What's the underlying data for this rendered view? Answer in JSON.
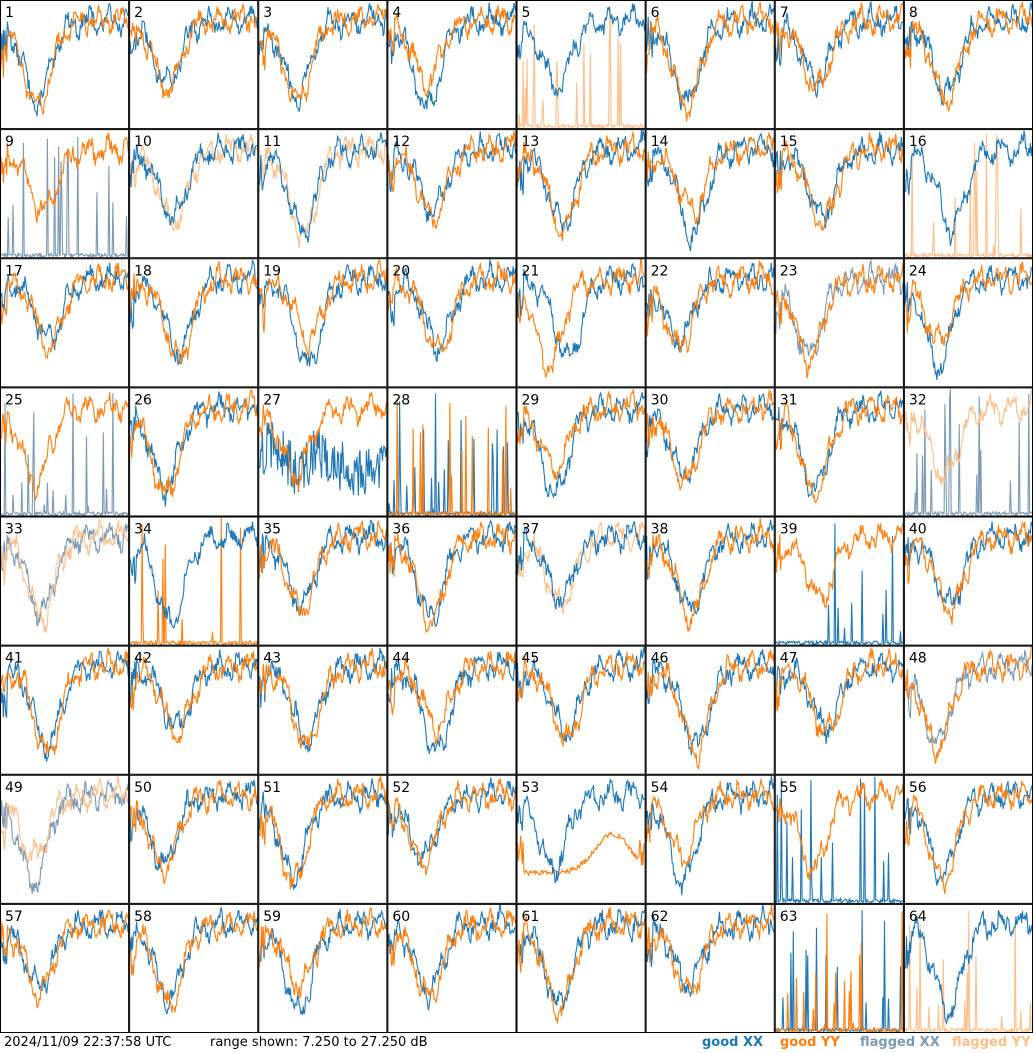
{
  "chart_data": {
    "type": "line",
    "panel_labels": [
      "1",
      "2",
      "3",
      "4",
      "5",
      "6",
      "7",
      "8",
      "9",
      "10",
      "11",
      "12",
      "13",
      "14",
      "15",
      "16",
      "17",
      "18",
      "19",
      "20",
      "21",
      "22",
      "23",
      "24",
      "25",
      "26",
      "27",
      "28",
      "29",
      "30",
      "31",
      "32",
      "33",
      "34",
      "35",
      "36",
      "37",
      "38",
      "39",
      "40",
      "41",
      "42",
      "43",
      "44",
      "45",
      "46",
      "47",
      "48",
      "49",
      "50",
      "51",
      "52",
      "53",
      "54",
      "55",
      "56",
      "57",
      "58",
      "59",
      "60",
      "61",
      "62",
      "63",
      "64"
    ],
    "ylim": [
      7.25,
      27.25
    ],
    "colors": {
      "good_xx": "#1f77b4",
      "good_yy": "#ff7f0e",
      "flagged_xx": "#7c9ab4",
      "flagged_yy": "#ffbf8a"
    },
    "panel_styles": {
      "5": {
        "yy": "flagged_spiky"
      },
      "9": {
        "xx": "flagged_spiky"
      },
      "10": {
        "yy": "flagged"
      },
      "11": {
        "yy": "flagged"
      },
      "16": {
        "yy": "flagged_spiky"
      },
      "23": {
        "xx": "flagged"
      },
      "25": {
        "xx": "flagged_spiky"
      },
      "27": {
        "xx": "good_noisy"
      },
      "28": {
        "xx": "good_spiky",
        "yy": "good_spiky"
      },
      "32": {
        "xx": "flagged_spiky",
        "yy": "flagged"
      },
      "33": {
        "xx": "flagged",
        "yy": "flagged"
      },
      "34": {
        "yy": "good_spiky"
      },
      "37": {
        "yy": "flagged"
      },
      "39": {
        "xx": "good_spiky"
      },
      "48": {
        "xx": "flagged"
      },
      "49": {
        "xx": "flagged",
        "yy": "flagged"
      },
      "53": {
        "yy": "bathtub"
      },
      "55": {
        "xx": "good_spiky"
      },
      "63": {
        "xx": "good_spiky",
        "yy": "good_spiky"
      },
      "64": {
        "yy": "flagged_spiky"
      }
    }
  },
  "footer": {
    "timestamp": "2024/11/09 22:37:58 UTC",
    "range_text": "range shown: 7.250 to 27.250 dB",
    "legend_good_xx": "good XX",
    "legend_good_yy": "good YY",
    "legend_flagged_xx": "flagged XX",
    "legend_flagged_yy": "flagged YY"
  }
}
